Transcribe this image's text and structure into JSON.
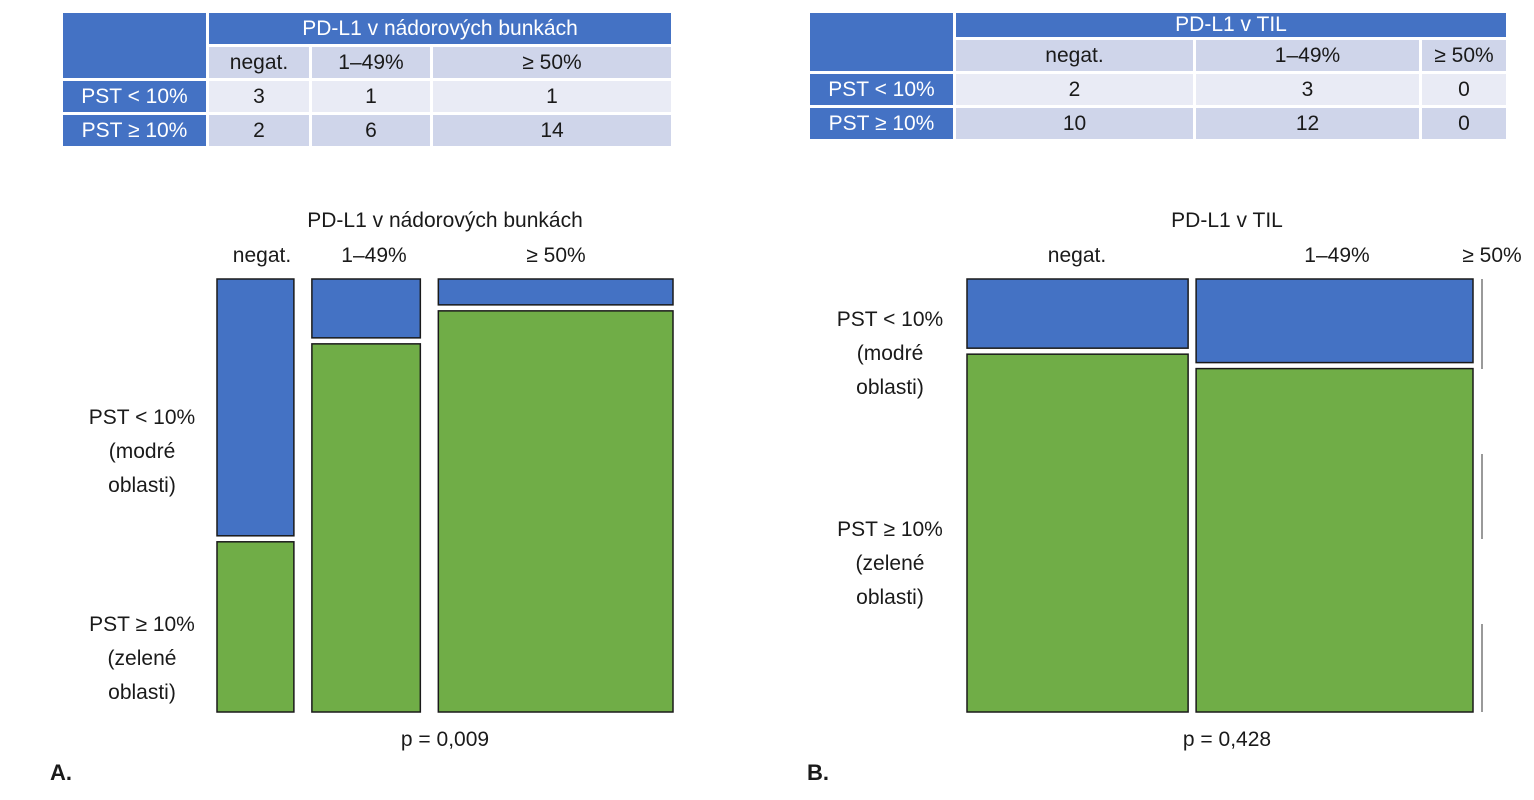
{
  "panel_a": {
    "letter": "A.",
    "table": {
      "title": "PD-L1 v nádorových bunkách",
      "columns": [
        "negat.",
        "1–49%",
        "≥ 50%"
      ],
      "rows": [
        {
          "label": "PST < 10%",
          "values": [
            "3",
            "1",
            "1"
          ]
        },
        {
          "label": "PST ≥ 10%",
          "values": [
            "2",
            "6",
            "14"
          ]
        }
      ]
    }
  },
  "panel_b": {
    "letter": "B.",
    "table": {
      "title": "PD-L1 v TIL",
      "columns": [
        "negat.",
        "1–49%",
        "≥ 50%"
      ],
      "rows": [
        {
          "label": "PST < 10%",
          "values": [
            "2",
            "3",
            "0"
          ]
        },
        {
          "label": "PST ≥ 10%",
          "values": [
            "10",
            "12",
            "0"
          ]
        }
      ]
    }
  },
  "chart_data": [
    {
      "type": "mosaic",
      "title": "PD-L1 v nádorových bunkách",
      "categories": [
        "negat.",
        "1–49%",
        "≥ 50%"
      ],
      "series": [
        {
          "name": "PST < 10%",
          "values": [
            3,
            1,
            1
          ]
        },
        {
          "name": "PST ≥ 10%",
          "values": [
            2,
            6,
            14
          ]
        }
      ],
      "row_labels": [
        [
          "PST < 10%",
          "(modré",
          "oblasti)"
        ],
        [
          "PST ≥ 10%",
          "(zelené",
          "oblasti)"
        ]
      ],
      "colors": [
        "#4472c4",
        "#70ad47"
      ],
      "annotation": "p = 0,009"
    },
    {
      "type": "mosaic",
      "title": "PD-L1 v TIL",
      "categories": [
        "negat.",
        "1–49%",
        "≥ 50%"
      ],
      "series": [
        {
          "name": "PST < 10%",
          "values": [
            2,
            3,
            0
          ]
        },
        {
          "name": "PST ≥ 10%",
          "values": [
            10,
            12,
            0
          ]
        }
      ],
      "row_labels": [
        [
          "PST < 10%",
          "(modré",
          "oblasti)"
        ],
        [
          "PST ≥ 10%",
          "(zelené",
          "oblasti)"
        ]
      ],
      "colors": [
        "#4472c4",
        "#70ad47"
      ],
      "annotation": "p = 0,428"
    }
  ]
}
